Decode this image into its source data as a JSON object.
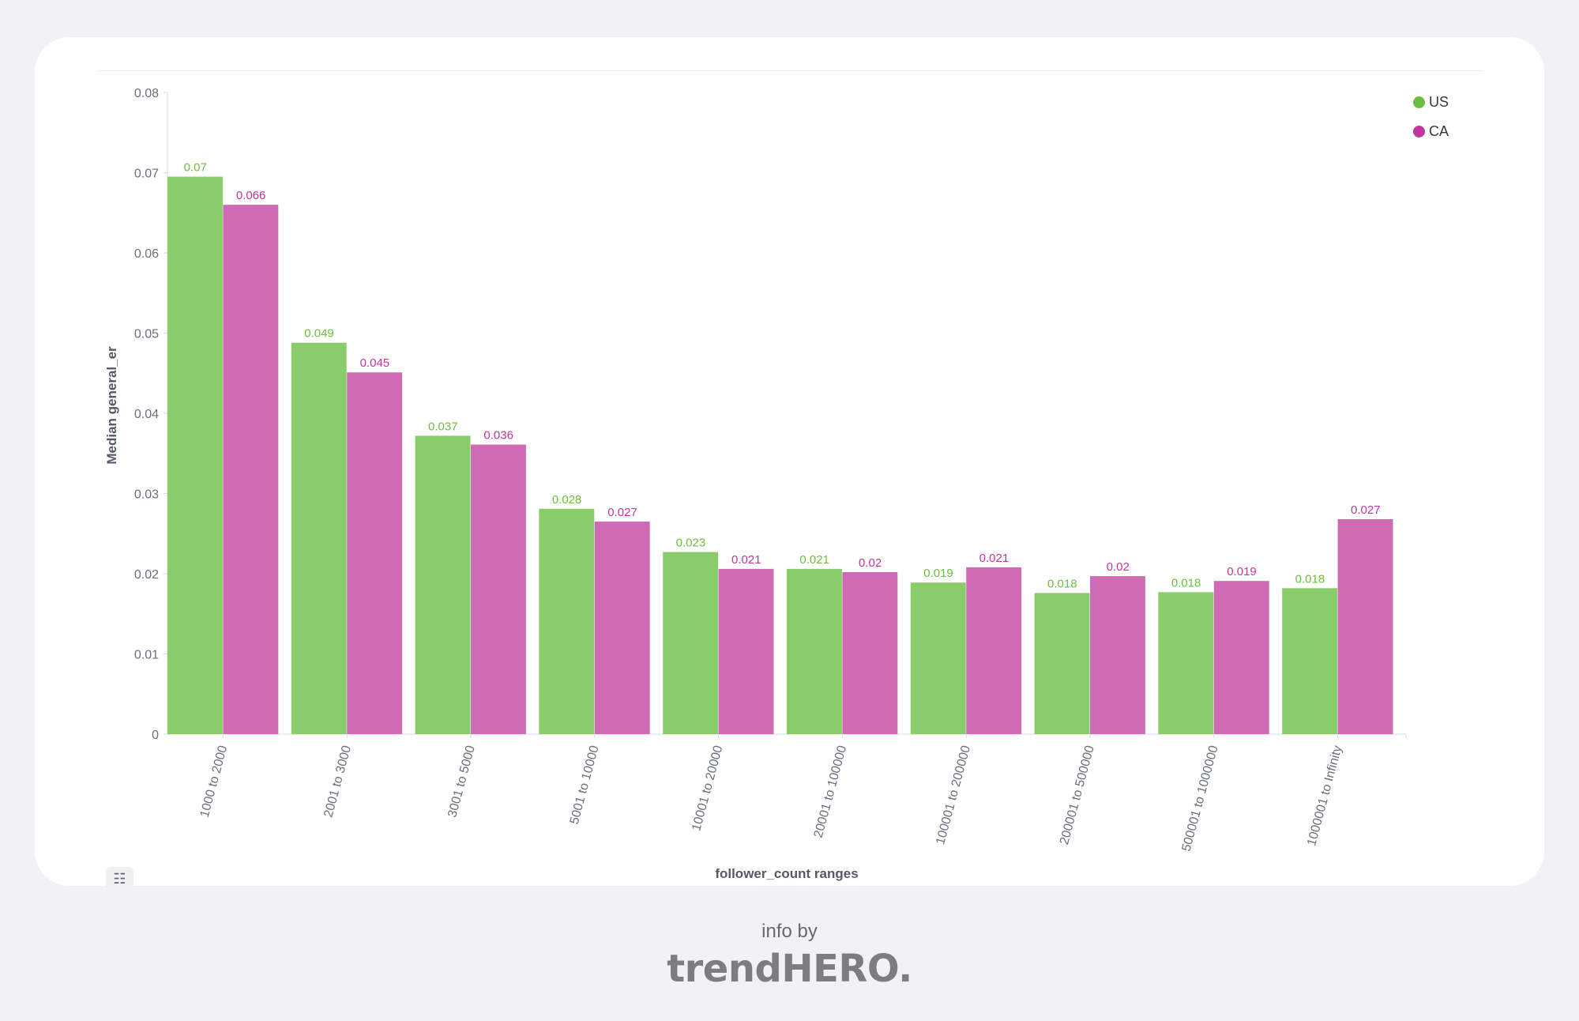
{
  "chart_data": {
    "type": "bar",
    "title": "",
    "xlabel": "follower_count ranges",
    "ylabel": "Median general_er",
    "ylim": [
      0,
      0.08
    ],
    "yticks": [
      "0",
      "0.01",
      "0.02",
      "0.03",
      "0.04",
      "0.05",
      "0.06",
      "0.07",
      "0.08"
    ],
    "categories": [
      "1000 to 2000",
      "2001 to 3000",
      "3001 to 5000",
      "5001 to 10000",
      "10001 to 20000",
      "20001 to 100000",
      "100001 to 200000",
      "200001 to 500000",
      "500001 to 1000000",
      "1000001 to Infinity"
    ],
    "series": [
      {
        "name": "US",
        "color": "#8bcc6a",
        "label_color": "#6dbd3f",
        "values": [
          0.0695,
          0.0488,
          0.0372,
          0.0281,
          0.0227,
          0.0206,
          0.0189,
          0.0176,
          0.0177,
          0.0182
        ],
        "labels": [
          "0.07",
          "0.049",
          "0.037",
          "0.028",
          "0.023",
          "0.021",
          "0.019",
          "0.018",
          "0.018",
          "0.018"
        ]
      },
      {
        "name": "CA",
        "color": "#cf6ab4",
        "label_color": "#c0359e",
        "values": [
          0.066,
          0.0451,
          0.0361,
          0.0265,
          0.0206,
          0.0202,
          0.0208,
          0.0197,
          0.0191,
          0.0268
        ],
        "labels": [
          "0.066",
          "0.045",
          "0.036",
          "0.027",
          "0.021",
          "0.02",
          "0.021",
          "0.02",
          "0.019",
          "0.027"
        ]
      }
    ],
    "grid": false,
    "legend_position": "top-right"
  },
  "legend": [
    {
      "name": "US",
      "color": "#6dbd3f"
    },
    {
      "name": "CA",
      "color": "#c0359e"
    }
  ],
  "controls": {
    "list_icon": "list-icon",
    "list_glyph": "☷"
  },
  "footer": {
    "info": "info by",
    "brand": "trendHERO."
  }
}
